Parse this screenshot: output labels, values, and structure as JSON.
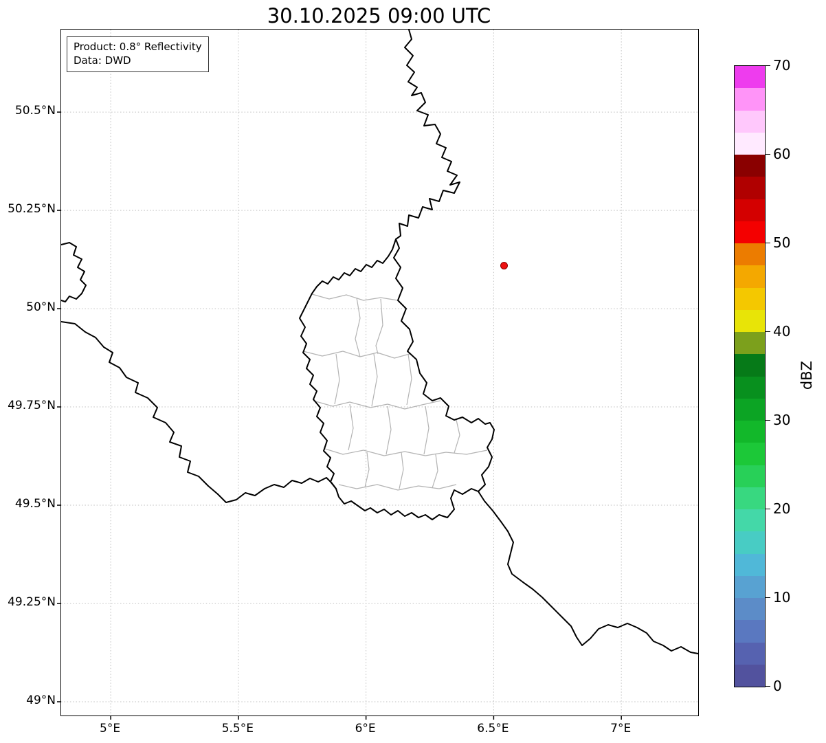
{
  "figure": {
    "title": "30.10.2025 09:00 UTC",
    "annotation": {
      "product_line": "Product: 0.8° Reflectivity",
      "source_line": "Data: DWD"
    }
  },
  "chart_data": {
    "type": "map",
    "title": "30.10.2025 09:00 UTC",
    "product": "0.8° Reflectivity",
    "data_source": "DWD",
    "region": "Luxembourg and surrounding borders (BE/DE/FR)",
    "extent": {
      "lon_min": 4.806,
      "lon_max": 7.301,
      "lat_min": 48.965,
      "lat_max": 50.71
    },
    "grid": {
      "visible": true,
      "style": "dotted",
      "color": "#bfbfbf"
    },
    "x_axis": {
      "ticks": [
        {
          "value": 5.0,
          "label": "5°E"
        },
        {
          "value": 5.5,
          "label": "5.5°E"
        },
        {
          "value": 6.0,
          "label": "6°E"
        },
        {
          "value": 6.5,
          "label": "6.5°E"
        },
        {
          "value": 7.0,
          "label": "7°E"
        }
      ]
    },
    "y_axis": {
      "ticks": [
        {
          "value": 49.0,
          "label": "49°N"
        },
        {
          "value": 49.25,
          "label": "49.25°N"
        },
        {
          "value": 49.5,
          "label": "49.5°N"
        },
        {
          "value": 49.75,
          "label": "49.75°N"
        },
        {
          "value": 50.0,
          "label": "50°N"
        },
        {
          "value": 50.25,
          "label": "50.25°N"
        },
        {
          "value": 50.5,
          "label": "50.5°N"
        }
      ]
    },
    "marker": {
      "name": "radar-site",
      "lon": 6.54,
      "lat": 50.11,
      "fill": "#ee1111",
      "edge": "#8b0000"
    },
    "radar_echoes": [],
    "colorbar": {
      "label": "dBZ",
      "min": 0,
      "max": 70,
      "step": 2.5,
      "ticks": [
        {
          "value": 0,
          "label": "0"
        },
        {
          "value": 10,
          "label": "10"
        },
        {
          "value": 20,
          "label": "20"
        },
        {
          "value": 30,
          "label": "30"
        },
        {
          "value": 40,
          "label": "40"
        },
        {
          "value": 50,
          "label": "50"
        },
        {
          "value": 60,
          "label": "60"
        },
        {
          "value": 70,
          "label": "70"
        }
      ],
      "colors_bottom_to_top": [
        "#52529e",
        "#5662b0",
        "#5a78c0",
        "#5c8cc8",
        "#58a2d2",
        "#50b8d8",
        "#48ccc4",
        "#44d8a8",
        "#38d880",
        "#28d058",
        "#1cc838",
        "#12b82a",
        "#0ca424",
        "#08901e",
        "#067a18",
        "#7ca01c",
        "#e8e407",
        "#f4c800",
        "#f4a800",
        "#ec7c00",
        "#f40000",
        "#d40000",
        "#b00000",
        "#8a0000",
        "#ffeaff",
        "#ffc8fc",
        "#ff94f8",
        "#ee3cee"
      ]
    }
  }
}
